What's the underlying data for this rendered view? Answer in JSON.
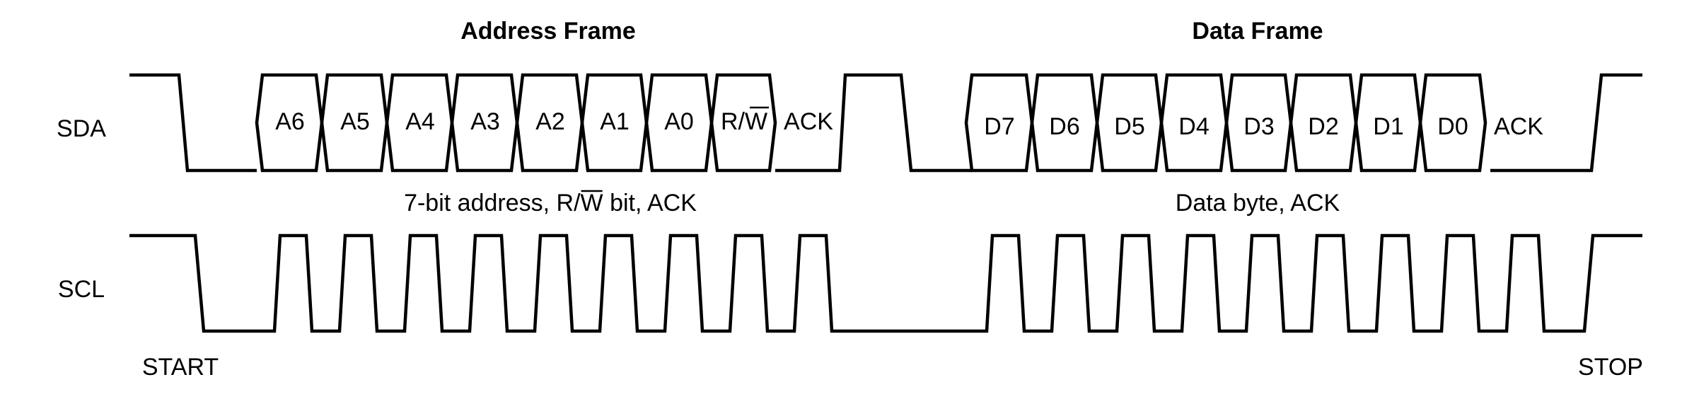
{
  "titles": {
    "address_frame": "Address Frame",
    "data_frame": "Data Frame"
  },
  "signals": {
    "sda": "SDA",
    "scl": "SCL"
  },
  "address_bits": [
    {
      "label": "A6"
    },
    {
      "label": "A5"
    },
    {
      "label": "A4"
    },
    {
      "label": "A3"
    },
    {
      "label": "A2"
    },
    {
      "label": "A1"
    },
    {
      "label": "A0"
    }
  ],
  "rw_bit": {
    "prefix": "R/",
    "overbar": "W"
  },
  "address_ack": "ACK",
  "data_bits": [
    {
      "label": "D7"
    },
    {
      "label": "D6"
    },
    {
      "label": "D5"
    },
    {
      "label": "D4"
    },
    {
      "label": "D3"
    },
    {
      "label": "D2"
    },
    {
      "label": "D1"
    },
    {
      "label": "D0"
    }
  ],
  "data_ack": "ACK",
  "address_note": {
    "before": "7-bit address, R/",
    "overbar": "W",
    "after": " bit, ACK"
  },
  "data_note": "Data byte, ACK",
  "conditions": {
    "start": "START",
    "stop": "STOP"
  },
  "colors": {
    "line": "#000000",
    "background": "#ffffff"
  }
}
